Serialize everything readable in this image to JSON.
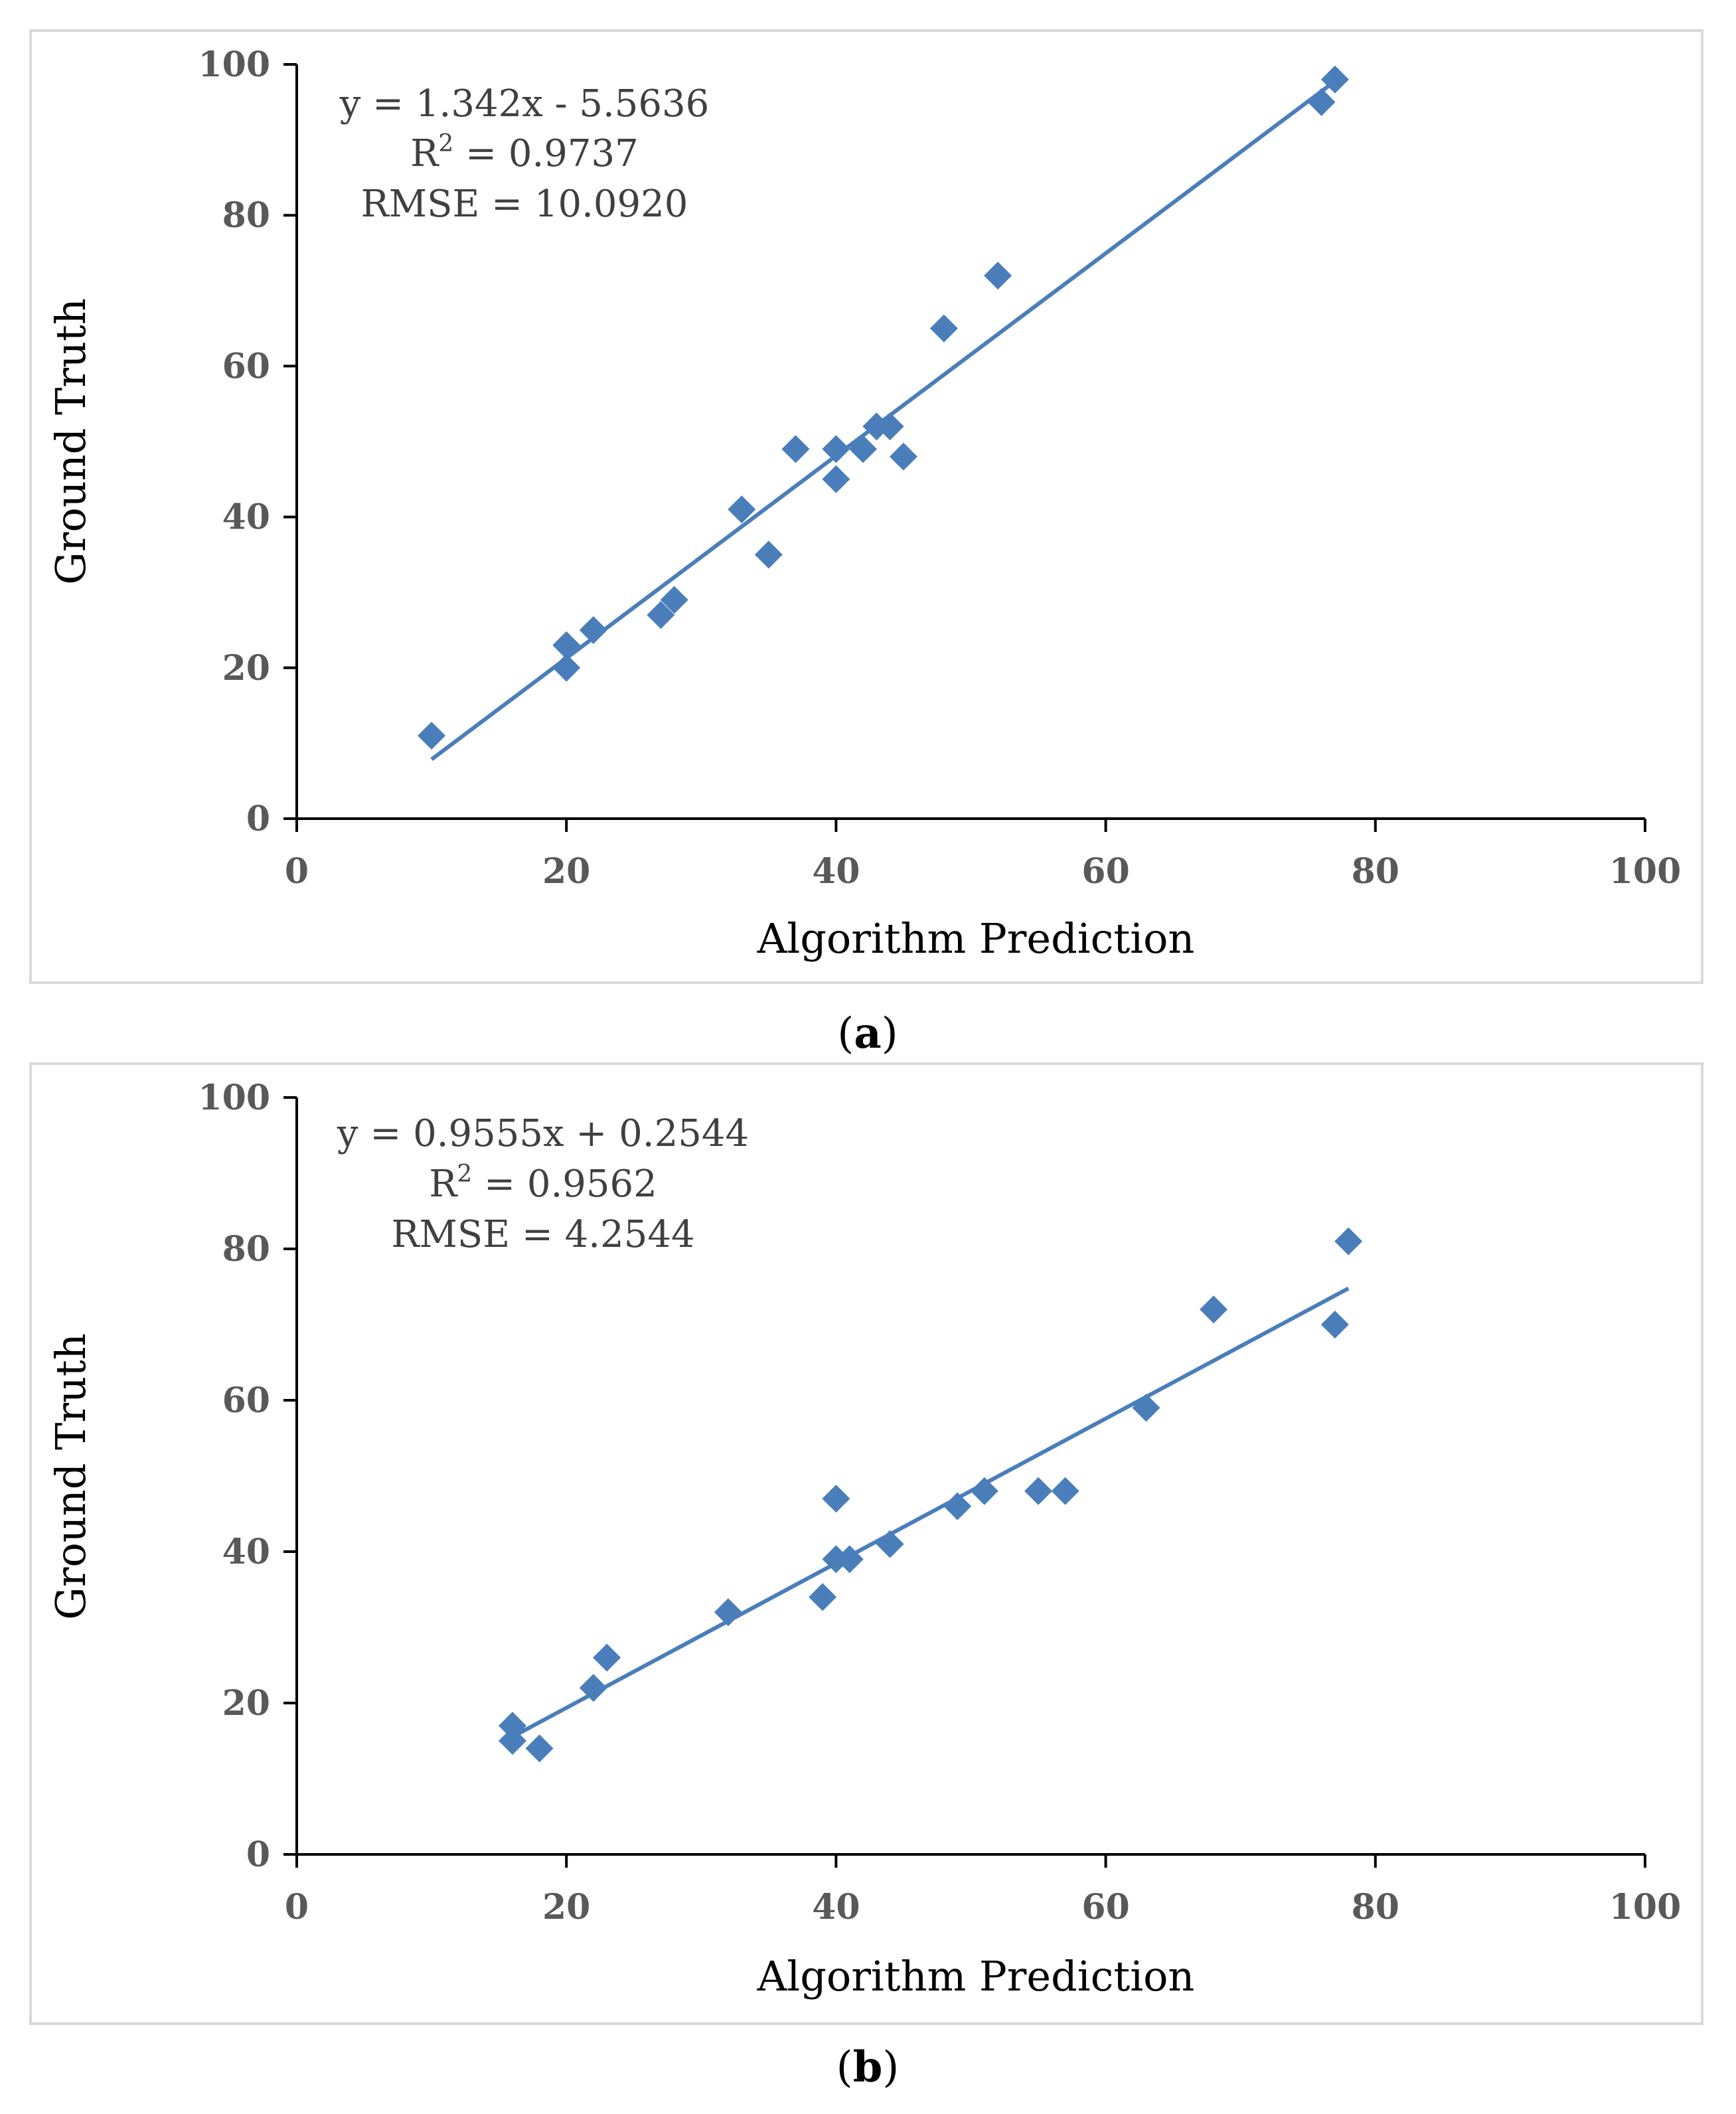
{
  "colors": {
    "marker": "#4a7ebb",
    "trendline": "#4a7ebb",
    "axis": "#000000",
    "frame": "#d9d9d9",
    "tick_label": "#595959",
    "annotation": "#404040"
  },
  "chart_data": [
    {
      "type": "scatter",
      "panel_label": "a",
      "xlabel": "Algorithm Prediction",
      "ylabel": "Ground Truth",
      "xlim": [
        0,
        100
      ],
      "ylim": [
        0,
        100
      ],
      "xticks": [
        "0",
        "20",
        "40",
        "60",
        "80",
        "100"
      ],
      "yticks": [
        "0",
        "20",
        "40",
        "60",
        "80",
        "100"
      ],
      "grid": false,
      "marker": "diamond",
      "annotation": {
        "equation": "y = 1.342x - 5.5636",
        "r2_prefix": "R",
        "r2_sup": "2",
        "r2_value": " = 0.9737",
        "rmse": "RMSE = 10.0920"
      },
      "trendline": {
        "slope": 1.342,
        "intercept": -5.5636,
        "x_range": [
          10,
          77
        ]
      },
      "series": [
        {
          "name": "points",
          "points": [
            [
              10,
              11
            ],
            [
              20,
              20
            ],
            [
              20,
              23
            ],
            [
              22,
              25
            ],
            [
              27,
              27
            ],
            [
              28,
              29
            ],
            [
              33,
              41
            ],
            [
              35,
              35
            ],
            [
              37,
              49
            ],
            [
              40,
              45
            ],
            [
              40,
              49
            ],
            [
              42,
              49
            ],
            [
              43,
              52
            ],
            [
              44,
              52
            ],
            [
              45,
              48
            ],
            [
              48,
              65
            ],
            [
              52,
              72
            ],
            [
              76,
              95
            ],
            [
              77,
              98
            ]
          ]
        }
      ]
    },
    {
      "type": "scatter",
      "panel_label": "b",
      "xlabel": "Algorithm Prediction",
      "ylabel": "Ground Truth",
      "xlim": [
        0,
        100
      ],
      "ylim": [
        0,
        100
      ],
      "xticks": [
        "0",
        "20",
        "40",
        "60",
        "80",
        "100"
      ],
      "yticks": [
        "0",
        "20",
        "40",
        "60",
        "80",
        "100"
      ],
      "grid": false,
      "marker": "diamond",
      "annotation": {
        "equation": "y = 0.9555x + 0.2544",
        "r2_prefix": "R",
        "r2_sup": "2",
        "r2_value": " = 0.9562",
        "rmse": "RMSE = 4.2544"
      },
      "trendline": {
        "slope": 0.9555,
        "intercept": 0.2544,
        "x_range": [
          16,
          78
        ]
      },
      "series": [
        {
          "name": "points",
          "points": [
            [
              16,
              15
            ],
            [
              16,
              17
            ],
            [
              18,
              14
            ],
            [
              22,
              22
            ],
            [
              23,
              26
            ],
            [
              32,
              32
            ],
            [
              39,
              34
            ],
            [
              40,
              39
            ],
            [
              40,
              47
            ],
            [
              41,
              39
            ],
            [
              44,
              41
            ],
            [
              49,
              46
            ],
            [
              51,
              48
            ],
            [
              55,
              48
            ],
            [
              57,
              48
            ],
            [
              63,
              59
            ],
            [
              68,
              72
            ],
            [
              77,
              70
            ],
            [
              78,
              81
            ]
          ]
        }
      ]
    }
  ]
}
